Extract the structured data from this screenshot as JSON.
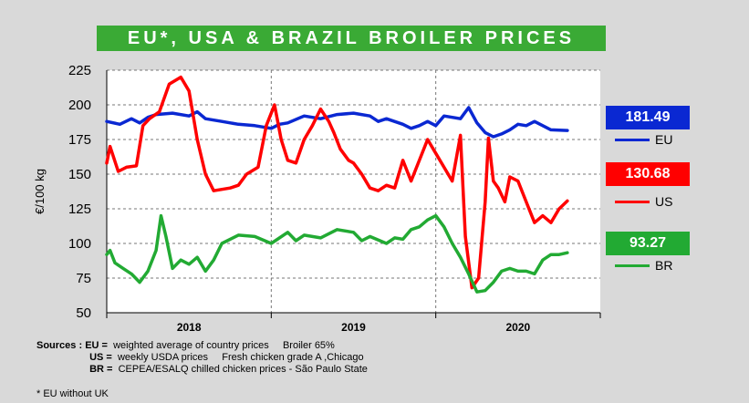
{
  "title": "EU*, USA & BRAZIL BROILER PRICES",
  "chart_data": {
    "type": "line",
    "title": "EU*, USA & BRAZIL BROILER PRICES",
    "ylabel": "€/100 kg",
    "xlabel": "",
    "ylim": [
      50,
      225
    ],
    "yticks": [
      50,
      75,
      100,
      125,
      150,
      175,
      200,
      225
    ],
    "xlim": [
      2017.5,
      2020.5
    ],
    "year_labels": [
      {
        "label": "2018",
        "x": 2018.0
      },
      {
        "label": "2019",
        "x": 2019.0
      },
      {
        "label": "2020",
        "x": 2020.0
      }
    ],
    "year_dividers": [
      2018.5,
      2019.5
    ],
    "grid": true,
    "series": [
      {
        "name": "EU",
        "color": "#0a28d2",
        "last_value": "181.49",
        "x": [
          2017.5,
          2017.58,
          2017.65,
          2017.7,
          2017.75,
          2017.8,
          2017.9,
          2018.0,
          2018.05,
          2018.1,
          2018.2,
          2018.3,
          2018.4,
          2018.5,
          2018.55,
          2018.6,
          2018.7,
          2018.8,
          2018.9,
          2019.0,
          2019.1,
          2019.15,
          2019.2,
          2019.3,
          2019.35,
          2019.4,
          2019.45,
          2019.5,
          2019.55,
          2019.65,
          2019.7,
          2019.75,
          2019.8,
          2019.85,
          2019.9,
          2019.95,
          2020.0,
          2020.05,
          2020.1,
          2020.15,
          2020.2,
          2020.3
        ],
        "values": [
          188,
          186,
          190,
          187,
          191,
          193,
          194,
          192,
          195,
          190,
          188,
          186,
          185,
          183,
          186,
          187,
          192,
          190,
          193,
          194,
          192,
          188,
          190,
          186,
          183,
          185,
          188,
          185,
          192,
          190,
          198,
          187,
          180,
          177,
          179,
          182,
          186,
          185,
          188,
          185,
          182,
          181.49
        ]
      },
      {
        "name": "US",
        "color": "#ff0000",
        "last_value": "130.68",
        "x": [
          2017.5,
          2017.52,
          2017.57,
          2017.62,
          2017.68,
          2017.72,
          2017.76,
          2017.82,
          2017.88,
          2017.95,
          2018.0,
          2018.05,
          2018.1,
          2018.15,
          2018.25,
          2018.3,
          2018.35,
          2018.42,
          2018.47,
          2018.52,
          2018.56,
          2018.6,
          2018.65,
          2018.7,
          2018.75,
          2018.8,
          2018.85,
          2018.88,
          2018.92,
          2018.97,
          2019.0,
          2019.05,
          2019.1,
          2019.15,
          2019.2,
          2019.25,
          2019.3,
          2019.35,
          2019.45,
          2019.5,
          2019.55,
          2019.6,
          2019.65,
          2019.68,
          2019.72,
          2019.76,
          2019.8,
          2019.82,
          2019.85,
          2019.88,
          2019.92,
          2019.95,
          2020.0,
          2020.05,
          2020.1,
          2020.15,
          2020.2,
          2020.25,
          2020.3
        ],
        "values": [
          158,
          170,
          152,
          155,
          156,
          185,
          190,
          195,
          215,
          220,
          210,
          175,
          150,
          138,
          140,
          142,
          150,
          155,
          185,
          200,
          175,
          160,
          158,
          175,
          185,
          197,
          188,
          180,
          168,
          160,
          158,
          150,
          140,
          138,
          142,
          140,
          160,
          145,
          175,
          165,
          155,
          145,
          178,
          105,
          68,
          75,
          130,
          176,
          145,
          140,
          130,
          148,
          145,
          130,
          115,
          120,
          115,
          125,
          130.68
        ]
      },
      {
        "name": "BR",
        "color": "#22aa33",
        "last_value": "93.27",
        "x": [
          2017.5,
          2017.52,
          2017.55,
          2017.6,
          2017.65,
          2017.7,
          2017.75,
          2017.8,
          2017.83,
          2017.86,
          2017.9,
          2017.95,
          2018.0,
          2018.05,
          2018.1,
          2018.15,
          2018.2,
          2018.3,
          2018.4,
          2018.5,
          2018.6,
          2018.65,
          2018.7,
          2018.8,
          2018.9,
          2019.0,
          2019.05,
          2019.1,
          2019.2,
          2019.25,
          2019.3,
          2019.35,
          2019.4,
          2019.45,
          2019.5,
          2019.55,
          2019.6,
          2019.65,
          2019.7,
          2019.75,
          2019.8,
          2019.85,
          2019.9,
          2019.95,
          2020.0,
          2020.05,
          2020.1,
          2020.15,
          2020.2,
          2020.25,
          2020.3
        ],
        "values": [
          92,
          95,
          86,
          82,
          78,
          72,
          80,
          95,
          120,
          105,
          82,
          88,
          85,
          90,
          80,
          88,
          100,
          106,
          105,
          100,
          108,
          102,
          106,
          104,
          110,
          108,
          102,
          105,
          100,
          104,
          103,
          110,
          112,
          117,
          120,
          112,
          100,
          90,
          78,
          65,
          66,
          72,
          80,
          82,
          80,
          80,
          78,
          88,
          92,
          92,
          93.27
        ]
      }
    ]
  },
  "sources": {
    "label": "Sources :",
    "eu_key": "EU =",
    "eu_text": "weighted average of country prices     Broiler 65%",
    "us_key": "US =",
    "us_text": "weekly USDA prices     Fresh chicken grade A ,Chicago",
    "br_key": "BR =",
    "br_text": "CEPEA/ESALQ chilled chicken prices - São Paulo State"
  },
  "footnote": "* EU without UK"
}
